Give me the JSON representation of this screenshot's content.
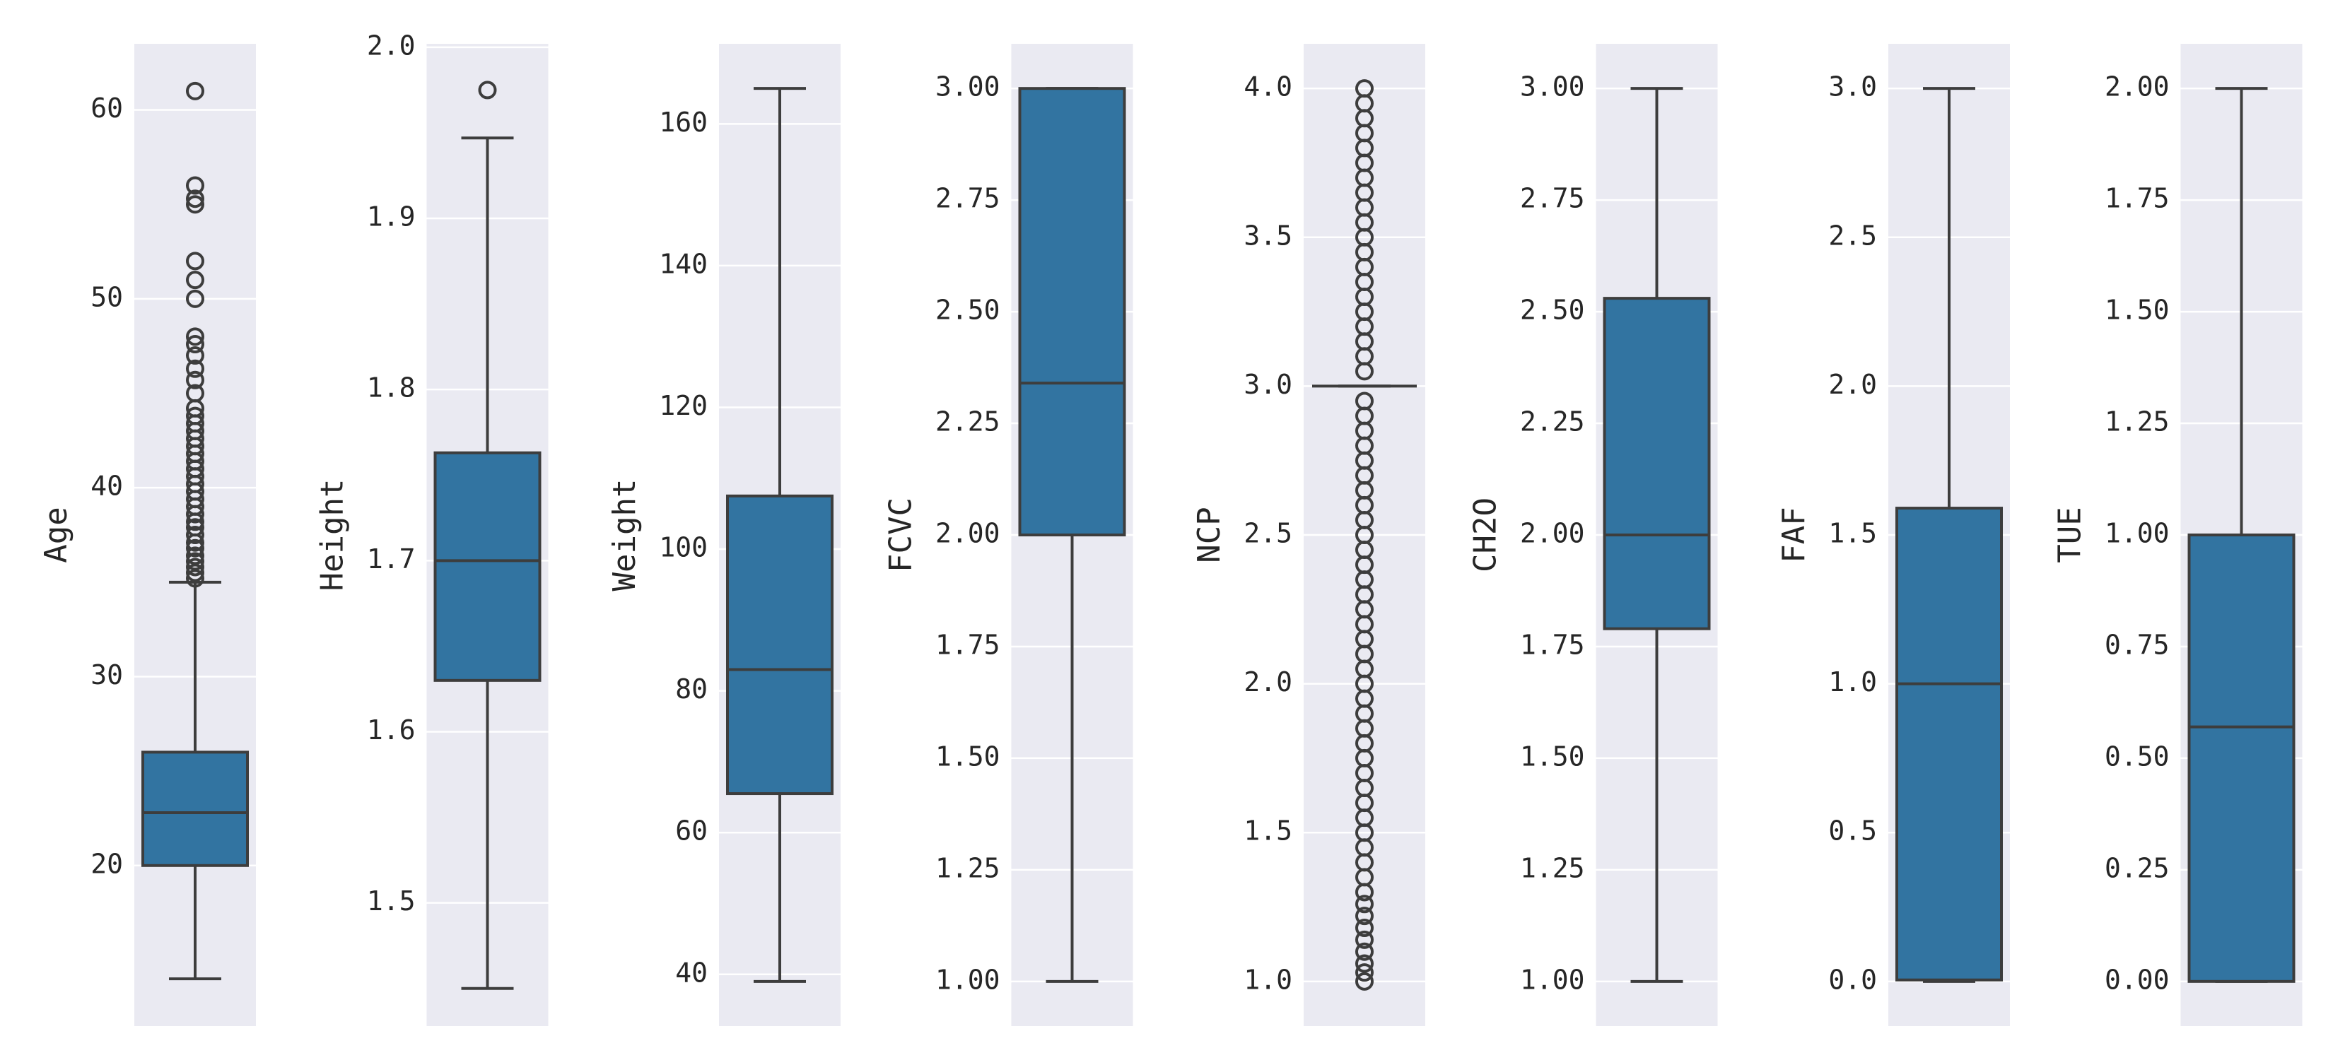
{
  "chart_data": [
    {
      "type": "box",
      "ylabel": "Age",
      "ylim": [
        11.5,
        63.5
      ],
      "yticks": [
        20,
        30,
        40,
        50,
        60
      ],
      "ytick_labels": [
        "20",
        "30",
        "40",
        "50",
        "60"
      ],
      "box": {
        "whislo": 14,
        "q1": 20,
        "med": 22.8,
        "q3": 26,
        "whishi": 35
      },
      "fliers": [
        35.2,
        35.5,
        35.8,
        36.1,
        36.4,
        36.8,
        37.1,
        37.5,
        37.9,
        38.2,
        38.6,
        39,
        39.4,
        39.8,
        40.2,
        40.6,
        41,
        41.4,
        41.8,
        42.2,
        42.6,
        43,
        43.4,
        43.8,
        44.2,
        45,
        45.7,
        46.3,
        47,
        47.6,
        48,
        50,
        51,
        52,
        55,
        55.3,
        56,
        61
      ]
    },
    {
      "type": "box",
      "ylabel": "Height",
      "ylim": [
        1.428,
        2.002
      ],
      "yticks": [
        1.5,
        1.6,
        1.7,
        1.8,
        1.9,
        2.0
      ],
      "ytick_labels": [
        "1.5",
        "1.6",
        "1.7",
        "1.8",
        "1.9",
        "2.0"
      ],
      "box": {
        "whislo": 1.45,
        "q1": 1.63,
        "med": 1.7,
        "q3": 1.763,
        "whishi": 1.947
      },
      "fliers": [
        1.975
      ]
    },
    {
      "type": "box",
      "ylabel": "Weight",
      "ylim": [
        32.7,
        171.3
      ],
      "yticks": [
        40,
        60,
        80,
        100,
        120,
        140,
        160
      ],
      "ytick_labels": [
        "40",
        "60",
        "80",
        "100",
        "120",
        "140",
        "160"
      ],
      "box": {
        "whislo": 39,
        "q1": 65.5,
        "med": 83,
        "q3": 107.5,
        "whishi": 165
      },
      "fliers": []
    },
    {
      "type": "box",
      "ylabel": "FCVC",
      "ylim": [
        0.9,
        3.1
      ],
      "yticks": [
        1,
        1.25,
        1.5,
        1.75,
        2,
        2.25,
        2.5,
        2.75,
        3
      ],
      "ytick_labels": [
        "1.00",
        "1.25",
        "1.50",
        "1.75",
        "2.00",
        "2.25",
        "2.50",
        "2.75",
        "3.00"
      ],
      "box": {
        "whislo": 1,
        "q1": 2,
        "med": 2.34,
        "q3": 3,
        "whishi": 3
      },
      "fliers": []
    },
    {
      "type": "box",
      "ylabel": "NCP",
      "ylim": [
        0.85,
        4.15
      ],
      "yticks": [
        1,
        1.5,
        2,
        2.5,
        3,
        3.5,
        4
      ],
      "ytick_labels": [
        "1.0",
        "1.5",
        "2.0",
        "2.5",
        "3.0",
        "3.5",
        "4.0"
      ],
      "box": {
        "whislo": 3,
        "q1": 3,
        "med": 3,
        "q3": 3,
        "whishi": 3
      },
      "fliers": [
        1,
        1.03,
        1.06,
        1.1,
        1.14,
        1.18,
        1.22,
        1.26,
        1.3,
        1.35,
        1.4,
        1.45,
        1.5,
        1.55,
        1.6,
        1.65,
        1.7,
        1.75,
        1.8,
        1.85,
        1.9,
        1.95,
        2,
        2.05,
        2.1,
        2.15,
        2.2,
        2.25,
        2.3,
        2.35,
        2.4,
        2.45,
        2.5,
        2.55,
        2.6,
        2.65,
        2.7,
        2.75,
        2.8,
        2.85,
        2.9,
        2.95,
        3.05,
        3.1,
        3.15,
        3.2,
        3.25,
        3.3,
        3.35,
        3.4,
        3.45,
        3.5,
        3.55,
        3.6,
        3.65,
        3.7,
        3.75,
        3.8,
        3.85,
        3.9,
        3.95,
        4
      ]
    },
    {
      "type": "box",
      "ylabel": "CH2O",
      "ylim": [
        0.9,
        3.1
      ],
      "yticks": [
        1,
        1.25,
        1.5,
        1.75,
        2,
        2.25,
        2.5,
        2.75,
        3
      ],
      "ytick_labels": [
        "1.00",
        "1.25",
        "1.50",
        "1.75",
        "2.00",
        "2.25",
        "2.50",
        "2.75",
        "3.00"
      ],
      "box": {
        "whislo": 1,
        "q1": 1.79,
        "med": 2,
        "q3": 2.53,
        "whishi": 3
      },
      "fliers": []
    },
    {
      "type": "box",
      "ylabel": "FAF",
      "ylim": [
        -0.15,
        3.15
      ],
      "yticks": [
        0,
        0.5,
        1,
        1.5,
        2,
        2.5,
        3
      ],
      "ytick_labels": [
        "0.0",
        "0.5",
        "1.0",
        "1.5",
        "2.0",
        "2.5",
        "3.0"
      ],
      "box": {
        "whislo": 0,
        "q1": 0.005,
        "med": 1,
        "q3": 1.59,
        "whishi": 3
      },
      "fliers": []
    },
    {
      "type": "box",
      "ylabel": "TUE",
      "ylim": [
        -0.1,
        2.1
      ],
      "yticks": [
        0,
        0.25,
        0.5,
        0.75,
        1,
        1.25,
        1.5,
        1.75,
        2
      ],
      "ytick_labels": [
        "0.00",
        "0.25",
        "0.50",
        "0.75",
        "1.00",
        "1.25",
        "1.50",
        "1.75",
        "2.00"
      ],
      "box": {
        "whislo": 0,
        "q1": 0,
        "med": 0.57,
        "q3": 1,
        "whishi": 2
      },
      "fliers": []
    }
  ],
  "colors": {
    "box_fill": "#3274a1",
    "line": "#3d3d3d",
    "panel_bg": "#eaeaf2",
    "grid": "#ffffff"
  }
}
